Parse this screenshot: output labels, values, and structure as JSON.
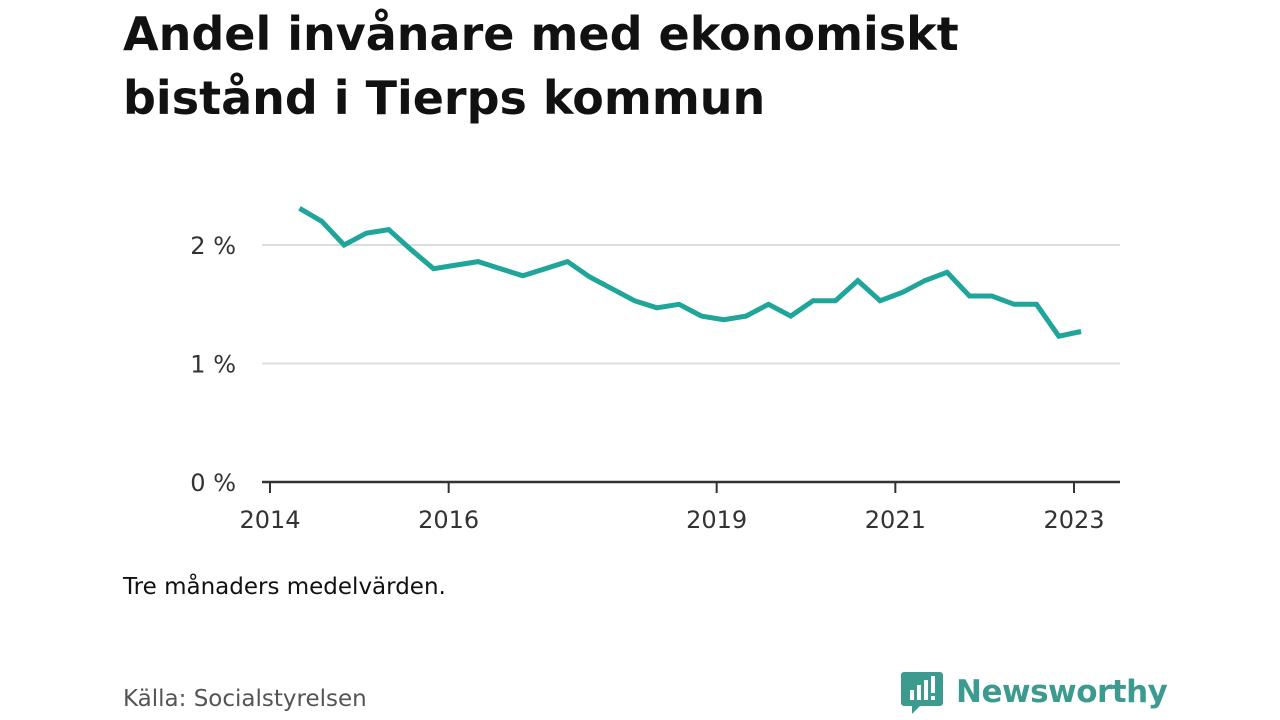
{
  "title": "Andel invånare med ekonomiskt bistånd i Tierps kommun",
  "note": "Tre månaders medelvärden.",
  "source": "Källa: Socialstyrelsen",
  "brand": {
    "name": "Newsworthy",
    "icon": "newsworthy-logo-icon",
    "color": "#3d9a8f"
  },
  "colors": {
    "line": "#1fa59a",
    "grid": "#dddddd",
    "axis": "#333333"
  },
  "chart_data": {
    "type": "line",
    "title": "Andel invånare med ekonomiskt bistånd i Tierps kommun",
    "xlabel": "",
    "ylabel": "",
    "grid": true,
    "xlim": [
      2014.0,
      2023.5
    ],
    "ylim": [
      0,
      2.5
    ],
    "y_ticks": [
      {
        "value": 0,
        "label": "0 %"
      },
      {
        "value": 1,
        "label": "1 %"
      },
      {
        "value": 2,
        "label": "2 %"
      }
    ],
    "x_ticks": [
      {
        "value": 2014,
        "label": "2014"
      },
      {
        "value": 2016,
        "label": "2016"
      },
      {
        "value": 2019,
        "label": "2019"
      },
      {
        "value": 2021,
        "label": "2021"
      },
      {
        "value": 2023,
        "label": "2023"
      }
    ],
    "series": [
      {
        "x": [
          2014.33,
          2014.58,
          2014.83,
          2015.08,
          2015.33,
          2015.58,
          2015.83,
          2016.08,
          2016.33,
          2016.58,
          2016.83,
          2017.08,
          2017.33,
          2017.58,
          2017.83,
          2018.08,
          2018.33,
          2018.58,
          2018.83,
          2019.08,
          2019.33,
          2019.58,
          2019.83,
          2020.08,
          2020.33,
          2020.58,
          2020.83,
          2021.08,
          2021.33,
          2021.58,
          2021.83,
          2022.08,
          2022.33,
          2022.58,
          2022.83,
          2023.08
        ],
        "values": [
          2.31,
          2.2,
          2.0,
          2.1,
          2.13,
          1.96,
          1.8,
          1.83,
          1.86,
          1.8,
          1.74,
          1.8,
          1.86,
          1.73,
          1.63,
          1.53,
          1.47,
          1.5,
          1.4,
          1.37,
          1.4,
          1.5,
          1.4,
          1.53,
          1.53,
          1.7,
          1.53,
          1.6,
          1.7,
          1.77,
          1.57,
          1.57,
          1.5,
          1.5,
          1.23,
          1.27
        ]
      }
    ]
  }
}
